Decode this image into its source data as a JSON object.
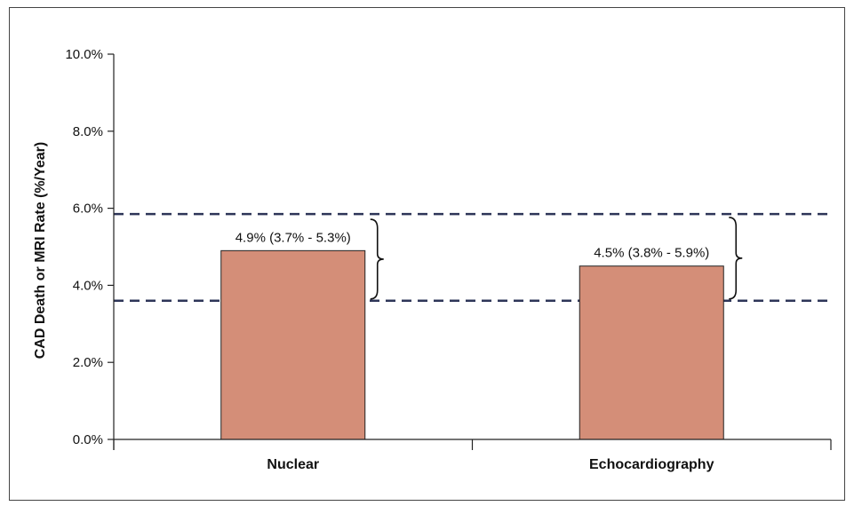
{
  "chart_data": {
    "type": "bar",
    "categories": [
      "Nuclear",
      "Echocardiography"
    ],
    "values": [
      4.9,
      4.5
    ],
    "data_labels": [
      "4.9% (3.7% - 5.3%)",
      "4.5% (3.8% - 5.9%)"
    ],
    "confidence_intervals": [
      [
        3.7,
        5.3
      ],
      [
        3.8,
        5.9
      ]
    ],
    "reference_lines": [
      5.85,
      3.6
    ],
    "title": "",
    "xlabel": "",
    "ylabel": "CAD Death or MRI Rate (%/Year)",
    "ylim": [
      0,
      10
    ],
    "yticks": [
      0,
      2,
      4,
      6,
      8,
      10
    ],
    "ytick_labels": [
      "0.0%",
      "2.0%",
      "4.0%",
      "6.0%",
      "8.0%",
      "10.0%"
    ],
    "grid": false,
    "legend": "none",
    "colors": {
      "bar_fill": "#d48e78",
      "bar_stroke": "#222222",
      "reference_line": "#2e3558",
      "axis": "#222222"
    }
  }
}
